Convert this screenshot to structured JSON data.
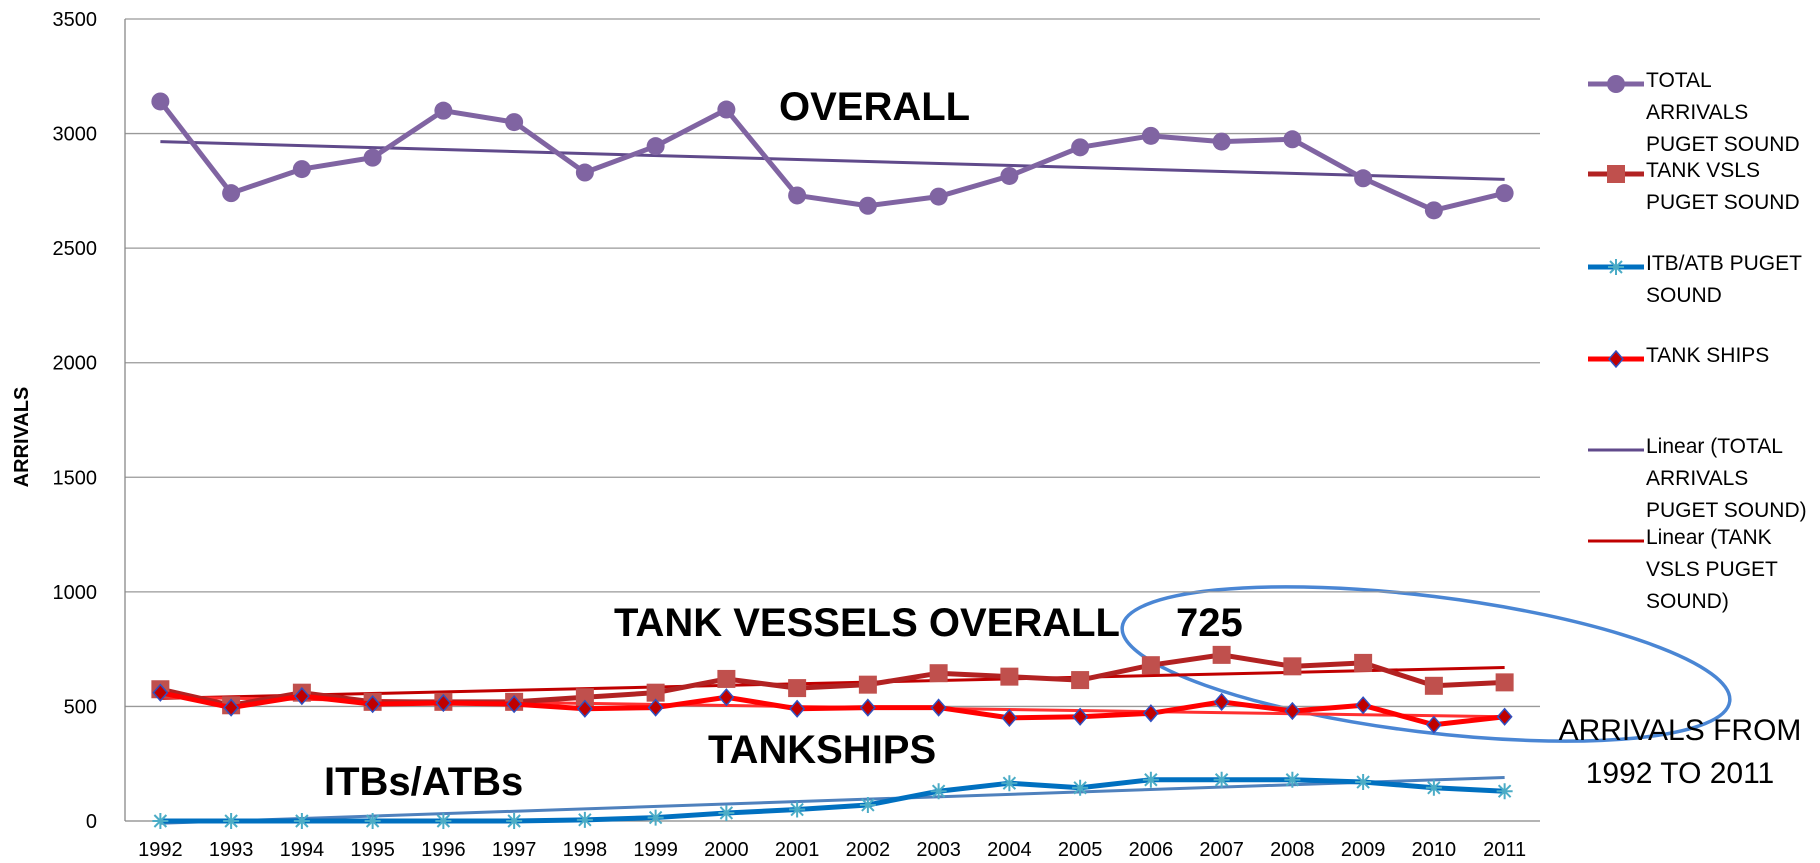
{
  "chart_data": {
    "type": "line",
    "y_label": "ARRIVALS",
    "x": [
      1992,
      1993,
      1994,
      1995,
      1996,
      1997,
      1998,
      1999,
      2000,
      2001,
      2002,
      2003,
      2004,
      2005,
      2006,
      2007,
      2008,
      2009,
      2010,
      2011
    ],
    "xlim": [
      1991.5,
      2011.5
    ],
    "ylim": [
      0,
      3500
    ],
    "yticks": [
      0,
      500,
      1000,
      1500,
      2000,
      2500,
      3000,
      3500
    ],
    "grid": true,
    "legend": "right",
    "series": [
      {
        "name": "TOTAL ARRIVALS PUGET SOUND",
        "color": "#8064a2",
        "marker": "circle",
        "values": [
          3140,
          2740,
          2845,
          2895,
          3100,
          3050,
          2830,
          2945,
          3105,
          2730,
          2685,
          2725,
          2815,
          2940,
          2990,
          2965,
          2975,
          2805,
          2665,
          2740
        ]
      },
      {
        "name": "TANK VSLS PUGET SOUND",
        "color": "#b22222",
        "marker": "square",
        "marker_color": "#c0504d",
        "values": [
          575,
          505,
          560,
          520,
          520,
          520,
          540,
          560,
          620,
          580,
          595,
          645,
          630,
          615,
          680,
          725,
          675,
          690,
          590,
          605
        ]
      },
      {
        "name": "ITB/ATB PUGET SOUND",
        "color": "#0070c0",
        "marker": "star",
        "marker_color": "#4bacc6",
        "values": [
          0,
          0,
          0,
          0,
          0,
          0,
          5,
          15,
          35,
          50,
          70,
          130,
          165,
          145,
          180,
          180,
          180,
          170,
          145,
          130
        ]
      },
      {
        "name": "TANK SHIPS",
        "color": "#ff0000",
        "marker": "diamond",
        "marker_color": "#c00000",
        "values": [
          560,
          495,
          545,
          510,
          515,
          510,
          490,
          495,
          540,
          490,
          495,
          495,
          450,
          455,
          470,
          520,
          480,
          505,
          420,
          455
        ]
      },
      {
        "name": "Linear (TOTAL ARRIVALS PUGET SOUND)",
        "color": "#604a8b",
        "x": [
          1992,
          2011
        ],
        "values": [
          2965,
          2800
        ]
      },
      {
        "name": "Linear (TANK VSLS PUGET SOUND)",
        "color": "#c00000",
        "x": [
          1992,
          2011
        ],
        "values": [
          535,
          670
        ]
      },
      {
        "color": "#4f81bd",
        "x": [
          1992,
          2011
        ],
        "values": [
          -10,
          190
        ]
      },
      {
        "color": "#ff3030",
        "x": [
          1992,
          2011
        ],
        "values": [
          540,
          455
        ]
      }
    ],
    "annotations": [
      "OVERALL",
      "TANK VESSELS OVERALL",
      "725",
      "TANKSHIPS",
      "ITBs/ATBs"
    ],
    "note_lines": [
      "ARRIVALS FROM",
      "1992 TO 2011"
    ]
  }
}
